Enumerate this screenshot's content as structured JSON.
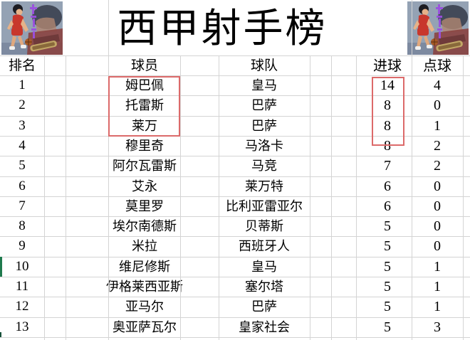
{
  "title": "西甲射手榜",
  "columns": [
    "排名",
    "球员",
    "球队",
    "进球",
    "点球"
  ],
  "rows": [
    {
      "rank": "1",
      "player": "姆巴佩",
      "team": "皇马",
      "goals": "14",
      "penalties": "4"
    },
    {
      "rank": "2",
      "player": "托雷斯",
      "team": "巴萨",
      "goals": "8",
      "penalties": "0"
    },
    {
      "rank": "3",
      "player": "莱万",
      "team": "巴萨",
      "goals": "8",
      "penalties": "1"
    },
    {
      "rank": "4",
      "player": "穆里奇",
      "team": "马洛卡",
      "goals": "8",
      "penalties": "2"
    },
    {
      "rank": "5",
      "player": "阿尔瓦雷斯",
      "team": "马竞",
      "goals": "7",
      "penalties": "2"
    },
    {
      "rank": "6",
      "player": "艾永",
      "team": "莱万特",
      "goals": "6",
      "penalties": "0"
    },
    {
      "rank": "7",
      "player": "莫里罗",
      "team": "比利亚雷亚尔",
      "goals": "6",
      "penalties": "0"
    },
    {
      "rank": "8",
      "player": "埃尔南德斯",
      "team": "贝蒂斯",
      "goals": "5",
      "penalties": "0"
    },
    {
      "rank": "9",
      "player": "米拉",
      "team": "西班牙人",
      "goals": "5",
      "penalties": "0"
    },
    {
      "rank": "10",
      "player": "维尼修斯",
      "team": "皇马",
      "goals": "5",
      "penalties": "1"
    },
    {
      "rank": "11",
      "player": "伊格莱西亚斯",
      "team": "塞尔塔",
      "goals": "5",
      "penalties": "1"
    },
    {
      "rank": "12",
      "player": "亚马尔",
      "team": "巴萨",
      "goals": "5",
      "penalties": "1"
    },
    {
      "rank": "13",
      "player": "奥亚萨瓦尔",
      "team": "皇家社会",
      "goals": "5",
      "penalties": "3"
    }
  ],
  "chart_data": {
    "type": "table",
    "title": "西甲射手榜",
    "columns": [
      "排名",
      "球员",
      "球队",
      "进球",
      "点球"
    ],
    "rows": [
      [
        "1",
        "姆巴佩",
        "皇马",
        14,
        4
      ],
      [
        "2",
        "托雷斯",
        "巴萨",
        8,
        0
      ],
      [
        "3",
        "莱万",
        "巴萨",
        8,
        1
      ],
      [
        "4",
        "穆里奇",
        "马洛卡",
        8,
        2
      ],
      [
        "5",
        "阿尔瓦雷斯",
        "马竞",
        7,
        2
      ],
      [
        "6",
        "艾永",
        "莱万特",
        6,
        0
      ],
      [
        "7",
        "莫里罗",
        "比利亚雷亚尔",
        6,
        0
      ],
      [
        "8",
        "埃尔南德斯",
        "贝蒂斯",
        5,
        0
      ],
      [
        "9",
        "米拉",
        "西班牙人",
        5,
        0
      ],
      [
        "10",
        "维尼修斯",
        "皇马",
        5,
        1
      ],
      [
        "11",
        "伊格莱西亚斯",
        "塞尔塔",
        5,
        1
      ],
      [
        "12",
        "亚马尔",
        "巴萨",
        5,
        1
      ],
      [
        "13",
        "奥亚萨瓦尔",
        "皇家社会",
        5,
        3
      ]
    ]
  },
  "annotations": {
    "highlight_box_color": "#dc6a6a",
    "highlighted_players": [
      "姆巴佩",
      "托雷斯",
      "莱万"
    ],
    "highlighted_goals": [
      "14",
      "8",
      "8"
    ],
    "selection_marker_color": "#1f7a4d"
  },
  "decor": {
    "corner_image": "slam-dunk-basketball-artwork",
    "watermark_color": "#9b4fe0",
    "gridline_color": "#d4d4d4"
  }
}
